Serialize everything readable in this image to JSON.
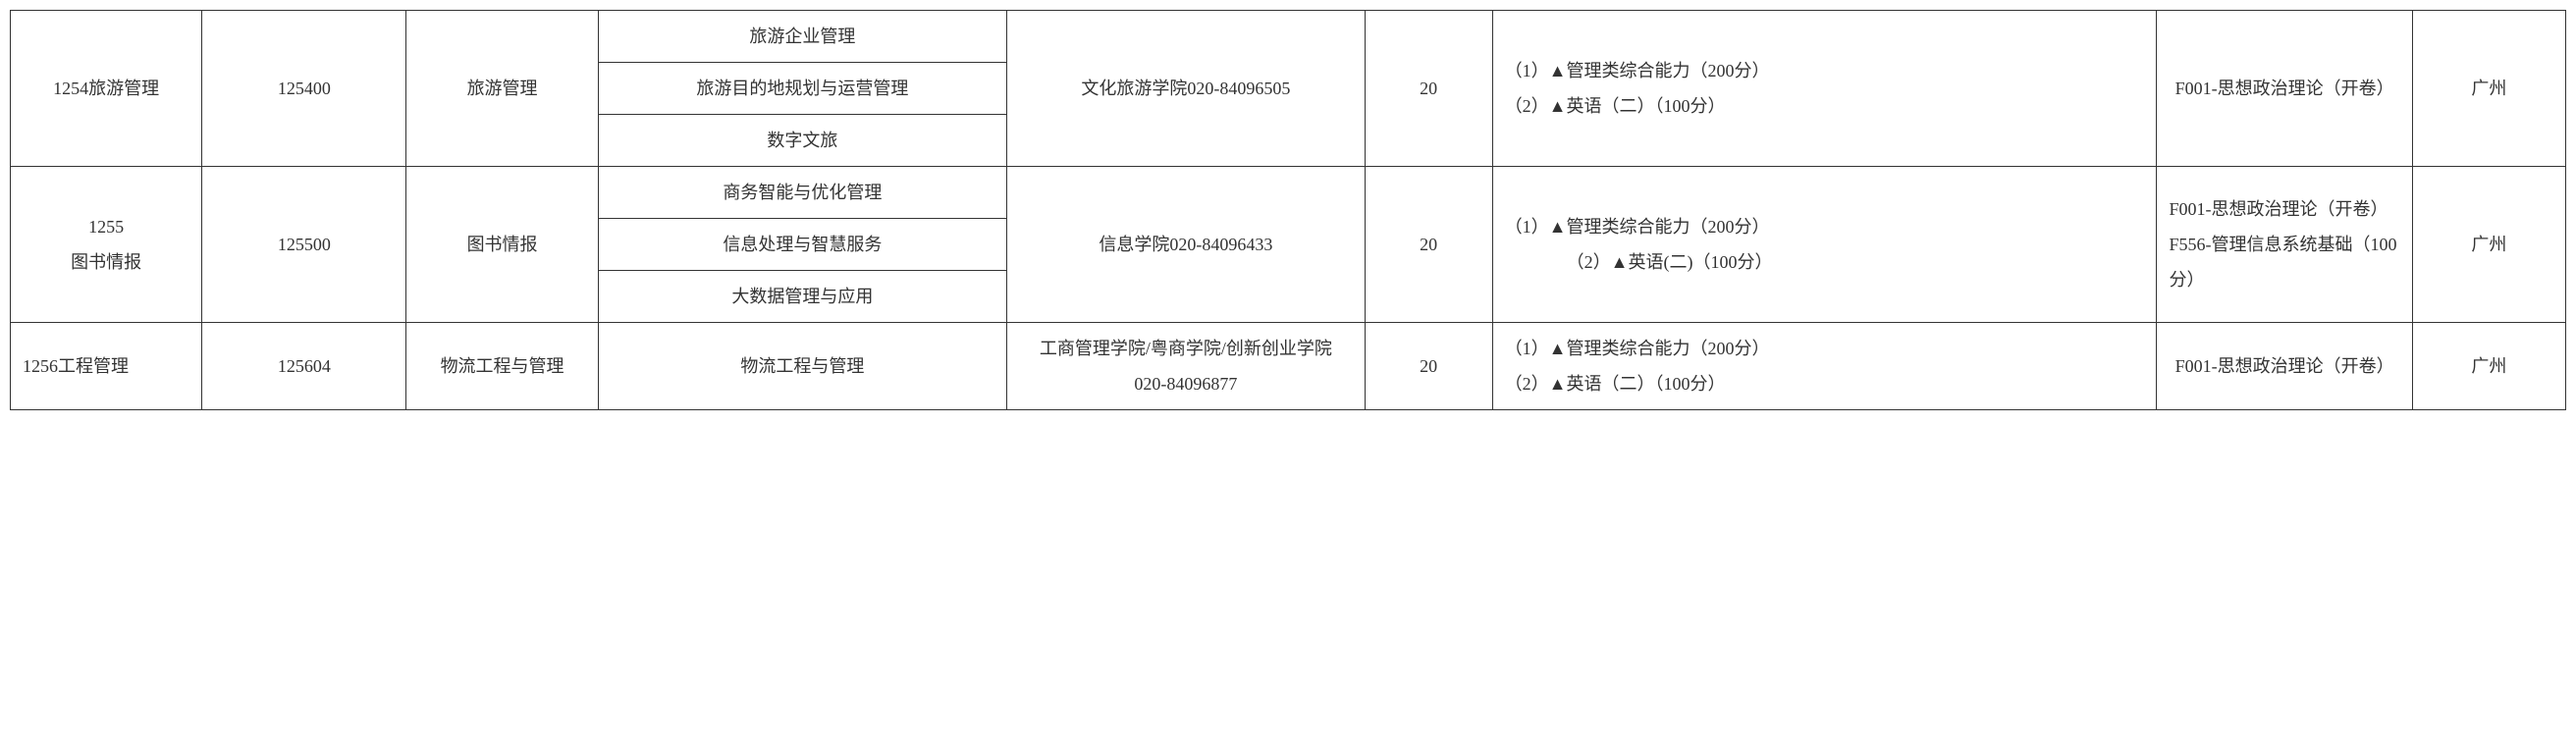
{
  "table": {
    "rows": [
      {
        "category": "1254旅游管理",
        "code": "125400",
        "major": "旅游管理",
        "directions": [
          "旅游企业管理",
          "旅游目的地规划与运营管理",
          "数字文旅"
        ],
        "college": "文化旅游学院020-84096505",
        "quota": "20",
        "exam": "（1）▲管理类综合能力（200分）\n（2）▲英语（二）（100分）",
        "retest": "F001-思想政治理论（开卷）",
        "location": "广州"
      },
      {
        "category": "1255\n图书情报",
        "code": "125500",
        "major": "图书情报",
        "directions": [
          "商务智能与优化管理",
          "信息处理与智慧服务",
          "大数据管理与应用"
        ],
        "college": "信息学院020-84096433",
        "quota": "20",
        "exam": "（1）▲管理类综合能力（200分）\n　　　　（2）▲英语(二)（100分）",
        "retest": "F001-思想政治理论（开卷）\nF556-管理信息系统基础（100分）",
        "location": "广州"
      },
      {
        "category": "1256工程管理",
        "code": "125604",
        "major": "物流工程与管理",
        "directions": [
          "物流工程与管理"
        ],
        "college": "工商管理学院/粤商学院/创新创业学院\n020-84096877",
        "quota": "20",
        "exam": "（1）▲管理类综合能力（200分）\n（2）▲英语（二）（100分）",
        "retest": "F001-思想政治理论（开卷）",
        "location": "广州"
      }
    ]
  },
  "colors": {
    "border": "#333333",
    "text": "#333333",
    "background": "#ffffff"
  }
}
